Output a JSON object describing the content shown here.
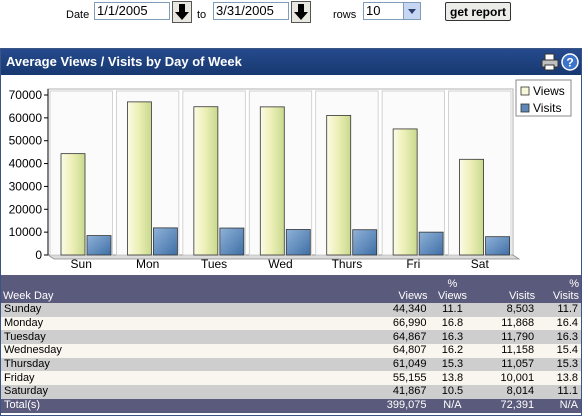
{
  "toolbar": {
    "date_label": "Date",
    "start_date": "1/1/2005",
    "to_label": "to",
    "end_date": "3/31/2005",
    "rows_label": "rows",
    "rows_value": "10",
    "report_button": "get report"
  },
  "panel": {
    "title": "Average Views / Visits by Day of Week",
    "icons": [
      "print-icon",
      "help-icon"
    ]
  },
  "colors": {
    "header_bg": "#1e4280",
    "views_bar": "#f2f2c8",
    "visits_bar": "#5d88b8",
    "table_header": "#5a5a7c",
    "row_alt": "#cecece"
  },
  "chart_data": {
    "type": "bar",
    "categories": [
      "Sun",
      "Mon",
      "Tues",
      "Wed",
      "Thurs",
      "Fri",
      "Sat"
    ],
    "series": [
      {
        "name": "Views",
        "values": [
          44340,
          66990,
          64867,
          64807,
          61049,
          55155,
          41867
        ]
      },
      {
        "name": "Visits",
        "values": [
          8503,
          11868,
          11790,
          11158,
          11057,
          10001,
          8014
        ]
      }
    ],
    "yticks": [
      "0",
      "10000",
      "20000",
      "30000",
      "40000",
      "50000",
      "60000",
      "70000"
    ],
    "ylim": [
      0,
      70000
    ],
    "legend": "top-right",
    "grid": false
  },
  "table": {
    "headers": {
      "day": "Week Day",
      "views": "Views",
      "pct_views_1": "%",
      "pct_views_2": "Views",
      "visits": "Visits",
      "pct_visits_1": "%",
      "pct_visits_2": "Visits"
    },
    "rows": [
      {
        "day": "Sunday",
        "views": "44,340",
        "pct_views": "11.1",
        "visits": "8,503",
        "pct_visits": "11.7"
      },
      {
        "day": "Monday",
        "views": "66,990",
        "pct_views": "16.8",
        "visits": "11,868",
        "pct_visits": "16.4"
      },
      {
        "day": "Tuesday",
        "views": "64,867",
        "pct_views": "16.3",
        "visits": "11,790",
        "pct_visits": "16.3"
      },
      {
        "day": "Wednesday",
        "views": "64,807",
        "pct_views": "16.2",
        "visits": "11,158",
        "pct_visits": "15.4"
      },
      {
        "day": "Thursday",
        "views": "61,049",
        "pct_views": "15.3",
        "visits": "11,057",
        "pct_visits": "15.3"
      },
      {
        "day": "Friday",
        "views": "55,155",
        "pct_views": "13.8",
        "visits": "10,001",
        "pct_visits": "13.8"
      },
      {
        "day": "Saturday",
        "views": "41,867",
        "pct_views": "10.5",
        "visits": "8,014",
        "pct_visits": "11.1"
      }
    ],
    "total": {
      "day": "Total(s)",
      "views": "399,075",
      "pct_views": "N/A",
      "visits": "72,391",
      "pct_visits": "N/A"
    }
  }
}
